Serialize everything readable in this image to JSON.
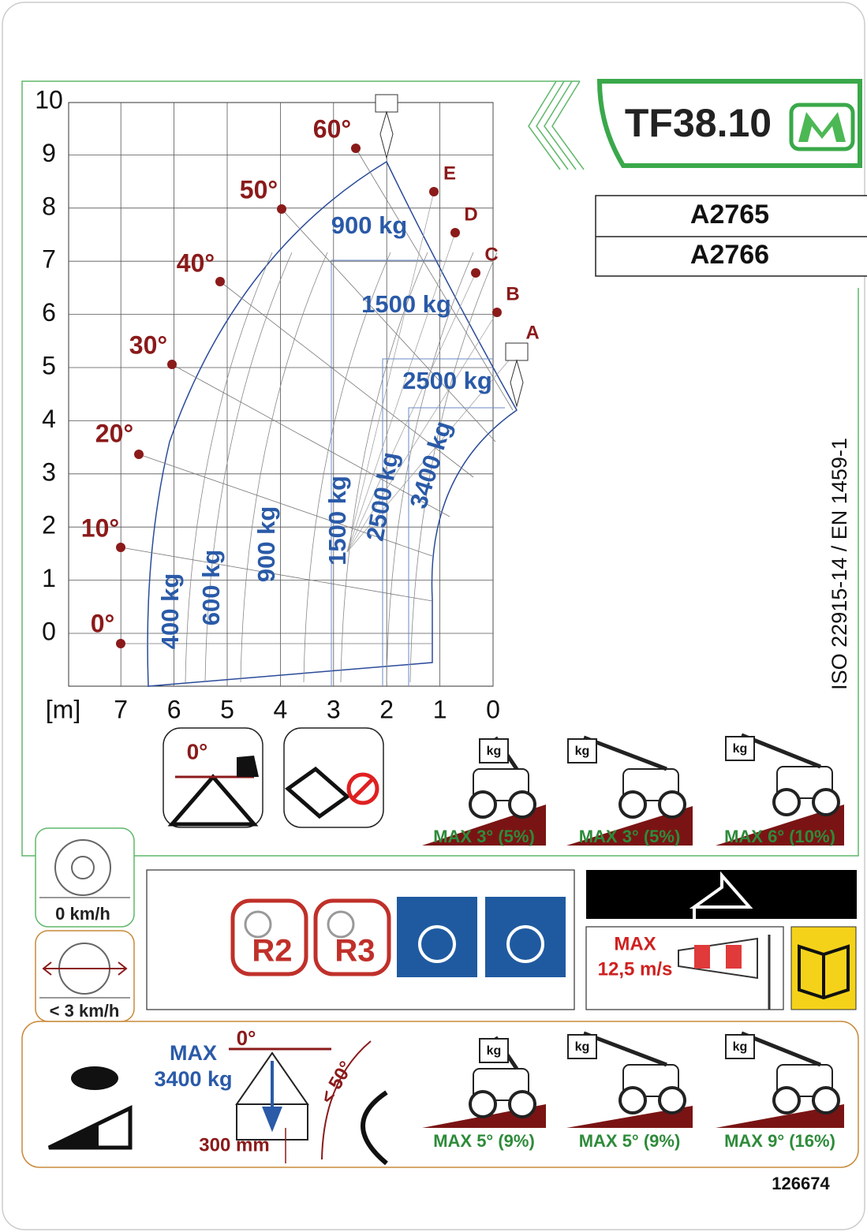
{
  "header": {
    "model": "TF38.10",
    "codes": [
      "A2765",
      "A2766"
    ],
    "standard": "ISO 22915-14  / EN 1459-1"
  },
  "load_chart": {
    "y_ticks": [
      10,
      9,
      8,
      7,
      6,
      5,
      4,
      3,
      2,
      1,
      0
    ],
    "unit": "[m]",
    "x_ticks": [
      7,
      6,
      5,
      4,
      3,
      2,
      1,
      0
    ],
    "angles": [
      "0°",
      "10°",
      "20°",
      "30°",
      "40°",
      "50°",
      "60°"
    ],
    "points": [
      "A",
      "B",
      "C",
      "D",
      "E"
    ],
    "loads_vertical": [
      "400 kg",
      "600 kg",
      "900 kg",
      "1500 kg",
      "2500 kg",
      "3400 kg"
    ],
    "loads_horizontal": [
      "900 kg",
      "1500 kg",
      "2500 kg"
    ]
  },
  "stability": {
    "boom_angle": "0°",
    "icon_label": "kg",
    "slopes": [
      "MAX 3° (5%)",
      "MAX 3° (5%)",
      "MAX 6° (10%)"
    ]
  },
  "stationary": {
    "speed": "0 km/h",
    "tyres": [
      "R2",
      "R3"
    ],
    "wind_label": "MAX",
    "wind_speed": "12,5 m/s"
  },
  "travel": {
    "speed": "< 3 km/h",
    "max_label": "MAX",
    "max_load": "3400 kg",
    "boom_angle": "0°",
    "lift_angle": "< 50°",
    "height": "300 mm",
    "slopes": [
      "MAX 5° (9%)",
      "MAX 5° (9%)",
      "MAX 9° (16%)"
    ]
  },
  "footer": {
    "part_number": "126674"
  }
}
